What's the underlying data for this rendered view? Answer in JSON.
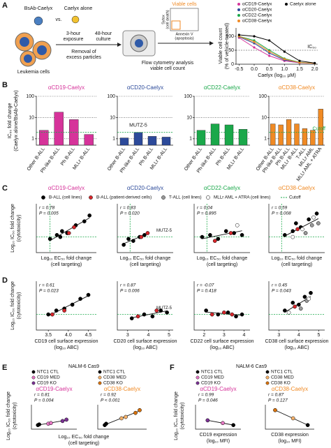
{
  "panel_labels": [
    "A",
    "B",
    "C",
    "D",
    "E",
    "F"
  ],
  "diagram": {
    "bsab": "BsAb-Caelyx",
    "vs": "vs.",
    "alone": "Caelyx alone",
    "cells": "Leukemia cells",
    "exposure": [
      "3-hour",
      "exposure"
    ],
    "culture": [
      "48-hour",
      "culture"
    ],
    "removal": [
      "Removal of",
      "excess particles"
    ],
    "flow": [
      "Flow cytometry analysis",
      "viable cell count"
    ],
    "viable": "Viable cells",
    "sytox": [
      "Sytox",
      "(cell death)"
    ],
    "annexin": [
      "Annexin V",
      "(apoptosis)"
    ]
  },
  "panel_b": {
    "y_label": [
      "IC₅₀ fold change",
      "(Caelyx alone/BsAb-Caelyx)"
    ]
  },
  "panel_c": {
    "y_label": [
      "Log₁₀ IC₅₀ fold change",
      "(cytotoxicity)"
    ],
    "legend": [
      {
        "name": "B-ALL (cell lines)",
        "color": "#000000"
      },
      {
        "name": "B-ALL (patient-derived cells)",
        "color": "#d7262b"
      },
      {
        "name": "T-ALL (cell lines)",
        "color": "#9a9a9a"
      },
      {
        "name": "MLLr AML + ATRA (cell lines)",
        "color": "#ffffff"
      },
      {
        "name": "Cutoff",
        "color": "#1aa84a",
        "style": "dashed"
      }
    ]
  },
  "panel_d": {
    "y_label": [
      "Log₁₀ IC₅₀ fold change",
      "(cytotoxicity)"
    ]
  },
  "panel_e": {
    "header": "NALM-6 Cas9",
    "y_label": [
      "Log₁₀ IC₅₀ fold change",
      "(cytotoxicity)"
    ],
    "x_label": [
      "Log₁₀ EC₅₀ fold change",
      "(cell targeting)"
    ]
  },
  "panel_f": {
    "header": "NALM-6 Cas9",
    "y_label": [
      "Log₁₀ IC₅₀ fold change",
      "(cytotoxicity)"
    ]
  },
  "chart_data": [
    {
      "type": "line",
      "x_label": "Caelyx (log₁₀ µM)",
      "y_label": [
        "Viable cell count",
        "(% of vehicle-treated)"
      ],
      "x": [
        -0.5,
        0,
        0.5,
        1,
        1.5,
        2
      ],
      "xlim": [
        -0.6,
        2.1
      ],
      "ylim": [
        0,
        130
      ],
      "xticks": [
        -0.5,
        {
          "value": 0,
          "label": "0.0"
        },
        0.5,
        {
          "value": 1,
          "label": "1.0"
        },
        1.5,
        {
          "value": 2,
          "label": "2.0"
        }
      ],
      "yticks": [
        0,
        50,
        100
      ],
      "annotation": "IC₅₀",
      "reference_line": 50,
      "series": [
        {
          "name": "αCD19-Caelyx",
          "color": "#d6339a",
          "values": [
            95,
            60,
            30,
            12,
            5,
            3
          ]
        },
        {
          "name": "αCD20-Caelyx",
          "color": "#2c4a9a",
          "values": [
            98,
            75,
            40,
            15,
            6,
            3
          ]
        },
        {
          "name": "αCD22-Caelyx",
          "color": "#1aa84a",
          "values": [
            100,
            85,
            50,
            20,
            7,
            3
          ]
        },
        {
          "name": "αCD38-Caelyx",
          "color": "#f08a24",
          "values": [
            100,
            80,
            45,
            18,
            6,
            3
          ]
        },
        {
          "name": "Caelyx alone",
          "color": "#000000",
          "values": [
            105,
            100,
            85,
            45,
            12,
            4
          ]
        }
      ]
    },
    {
      "type": "bar",
      "title": "αCD19-Caelyx",
      "color": "#d6339a",
      "categories": [
        "Other B-ALL",
        "Ph-like B-ALL",
        "Ph B-ALL",
        "MLLr B-ALL"
      ],
      "values": [
        2.5,
        18,
        8,
        1.6
      ],
      "ylim": [
        0.5,
        100
      ],
      "yticks": [
        1,
        10,
        100
      ],
      "log_scale": true,
      "grid": true,
      "cutoff": 2
    },
    {
      "type": "bar",
      "title": "αCD20-Caelyx",
      "color": "#2c4a9a",
      "categories": [
        "Other B-ALL",
        "Ph-like B-ALL",
        "Ph B-ALL",
        "MLLr B-ALL"
      ],
      "values": [
        1.1,
        2,
        1.3,
        1.2
      ],
      "ylim": [
        0.5,
        100
      ],
      "yticks": [
        1,
        10,
        100
      ],
      "log_scale": true,
      "grid": true,
      "cutoff": 2,
      "annotation": "MUTZ-5"
    },
    {
      "type": "bar",
      "title": "αCD22-Caelyx",
      "color": "#1aa84a",
      "categories": [
        "Other B-ALL",
        "Ph-like B-ALL",
        "Ph B-ALL",
        "MLLr B-ALL"
      ],
      "values": [
        2.5,
        5,
        4.5,
        2.8
      ],
      "ylim": [
        0.5,
        100
      ],
      "yticks": [
        1,
        10,
        100
      ],
      "log_scale": true,
      "grid": true,
      "cutoff": 2
    },
    {
      "type": "bar",
      "title": "αCD38-Caelyx",
      "color": "#f08a24",
      "categories": [
        "Other B-ALL",
        "Ph-like B-ALL",
        "Ph B-ALL",
        "MLLr B-ALL",
        "T-ALL",
        "MLLr AML",
        "MLLr AML + ATRA"
      ],
      "values": [
        5,
        4.5,
        8,
        5,
        3,
        2.5,
        25
      ],
      "ylim": [
        0.5,
        100
      ],
      "yticks": [
        1,
        10,
        100
      ],
      "log_scale": true,
      "grid": true,
      "cutoff": 2,
      "cutoff_label": "Cutoff"
    },
    {
      "type": "scatter",
      "title": "αCD19-Caelyx",
      "title_color": "#d6339a",
      "stats": [
        "r = 0.78",
        "P = 0.005"
      ],
      "x_label": [
        "Log₁₀ EC₅₀ fold change",
        "(cell targeting)"
      ],
      "xlim": [
        -0.5,
        3
      ],
      "ylim": [
        -0.5,
        2
      ],
      "cutoff_x": 0.3,
      "cutoff_y": 0.3,
      "series": [
        {
          "color": "#000000",
          "x": [
            0.3,
            0.7,
            1.0,
            1.3,
            1.8,
            2.3,
            2.6,
            0.9
          ],
          "values": [
            0.2,
            0.4,
            0.6,
            0.5,
            0.9,
            1.1,
            1.4,
            0.3
          ]
        },
        {
          "color": "#d7262b",
          "x": [
            1.4,
            1.7
          ],
          "values": [
            0.5,
            0.8
          ]
        }
      ]
    },
    {
      "type": "scatter",
      "title": "αCD20-Caelyx",
      "title_color": "#2c4a9a",
      "stats": [
        "r = 0.83",
        "P = 0.020"
      ],
      "x_label": [
        "Log₁₀ EC₅₀ fold change",
        "(cell targeting)"
      ],
      "xlim": [
        -0.5,
        3
      ],
      "ylim": [
        -0.5,
        2
      ],
      "cutoff_x": 0.3,
      "cutoff_y": 0.3,
      "annotation": "MUTZ-5",
      "series": [
        {
          "color": "#000000",
          "x": [
            -0.1,
            0.2,
            0.5,
            0.9,
            1.2
          ],
          "values": [
            -0.1,
            0.2,
            0.1,
            0.3,
            0.4
          ]
        },
        {
          "color": "#d7262b",
          "x": [
            1.0,
            1.4
          ],
          "values": [
            0.3,
            0.5
          ]
        }
      ]
    },
    {
      "type": "scatter",
      "title": "αCD22-Caelyx",
      "title_color": "#1aa84a",
      "stats": [
        "r = 0.04",
        "P = 0.895"
      ],
      "x_label": [
        "Log₁₀ EC₅₀ fold change",
        "(cell targeting)"
      ],
      "xlim": [
        -0.5,
        3
      ],
      "ylim": [
        -0.5,
        2
      ],
      "cutoff_x": 0.3,
      "cutoff_y": 0.3,
      "series": [
        {
          "color": "#000000",
          "x": [
            0,
            0.5,
            1,
            1.5,
            2,
            2.5
          ],
          "values": [
            0.3,
            0.4,
            0.2,
            0.6,
            0.5,
            0.4
          ]
        },
        {
          "color": "#d7262b",
          "x": [
            0.8,
            1.8
          ],
          "values": [
            0.1,
            0.5
          ]
        },
        {
          "color": "#ffffff",
          "x": [
            2.2
          ],
          "values": [
            0.9
          ]
        }
      ]
    },
    {
      "type": "scatter",
      "title": "αCD38-Caelyx",
      "title_color": "#f08a24",
      "stats": [
        "r = 0.59",
        "P = 0.008"
      ],
      "x_label": [
        "Log₁₀ EC₅₀ fold change",
        "(cell targeting)"
      ],
      "xlim": [
        -0.5,
        3
      ],
      "ylim": [
        -0.5,
        2
      ],
      "cutoff_x": 0.3,
      "cutoff_y": 0.3,
      "series": [
        {
          "color": "#000000",
          "x": [
            0.5,
            1,
            1.2,
            1.5,
            2,
            2.5
          ],
          "values": [
            0.4,
            0.6,
            1.0,
            0.8,
            1.2,
            1.5
          ]
        },
        {
          "color": "#9a9a9a",
          "x": [
            1.8,
            2.2,
            2.6
          ],
          "values": [
            0.5,
            0.9,
            1.0
          ]
        },
        {
          "color": "#ffffff",
          "x": [
            1.0,
            1.6,
            2.3
          ],
          "values": [
            0.3,
            0.7,
            1.3
          ]
        },
        {
          "color": "#d7262b",
          "x": [
            1.3
          ],
          "values": [
            0.7
          ]
        }
      ]
    },
    {
      "type": "scatter",
      "stats": [
        "r = 0.61",
        "P = 0.023"
      ],
      "x_label": [
        "CD19 cell surface expression",
        "(log₁₀ ABC)"
      ],
      "xlim": [
        3.2,
        4.7
      ],
      "xticks": [
        3.5,
        {
          "value": 4,
          "label": "4.0"
        },
        4.5
      ],
      "ylim": [
        -0.5,
        2
      ],
      "cutoff_y": 0.3,
      "series": [
        {
          "color": "#000000",
          "x": [
            3.5,
            3.7,
            3.9,
            4.1,
            4.3,
            4.5
          ],
          "values": [
            0.3,
            0.5,
            0.6,
            0.8,
            1.1,
            1.3
          ]
        },
        {
          "color": "#d7262b",
          "x": [
            3.6,
            3.9
          ],
          "values": [
            0.3,
            0.5
          ]
        }
      ]
    },
    {
      "type": "scatter",
      "stats": [
        "r = 0.87",
        "P = 0.006"
      ],
      "x_label": [
        "CD20 cell surface expression",
        "(log₁₀ ABC)"
      ],
      "annotation": "MUTZ-5",
      "xlim": [
        2.5,
        5.2
      ],
      "xticks": [
        3,
        4,
        5
      ],
      "ylim": [
        -0.5,
        2
      ],
      "cutoff_y": 0.3,
      "series": [
        {
          "color": "#000000",
          "x": [
            3.2,
            3.8,
            4.2,
            4.6,
            4.9
          ],
          "values": [
            0.1,
            0.3,
            0.2,
            0.5,
            0.4
          ]
        },
        {
          "color": "#d7262b",
          "x": [
            3.5,
            4.4
          ],
          "values": [
            0.2,
            0.5
          ]
        }
      ]
    },
    {
      "type": "scatter",
      "stats": [
        "r = -0.07",
        "P = 0.418"
      ],
      "x_label": [
        "CD22 cell surface expression",
        "(log₁₀ ABC)"
      ],
      "xlim": [
        1.5,
        4.3
      ],
      "xticks": [
        2,
        3,
        4
      ],
      "ylim": [
        -0.5,
        2
      ],
      "cutoff_y": 0.3,
      "series": [
        {
          "color": "#000000",
          "x": [
            2.1,
            2.7,
            3.2,
            3.6,
            3.9
          ],
          "values": [
            0.5,
            0.3,
            0.4,
            0.2,
            0.3
          ]
        },
        {
          "color": "#d7262b",
          "x": [
            2.4,
            3.0,
            3.4
          ],
          "values": [
            0.3,
            0.4,
            0.3
          ]
        }
      ]
    },
    {
      "type": "scatter",
      "stats": [
        "r = 0.45",
        "P = 0.043"
      ],
      "x_label": [
        "CD38 cell surface expression",
        "(log₁₀ ABC)"
      ],
      "xlim": [
        2.5,
        5.3
      ],
      "xticks": [
        3,
        4,
        5
      ],
      "ylim": [
        -0.5,
        2
      ],
      "cutoff_y": 0.3,
      "series": [
        {
          "color": "#000000",
          "x": [
            3.3,
            3.7,
            4.0,
            4.3,
            4.6
          ],
          "values": [
            0.5,
            0.9,
            0.8,
            1.2,
            1.4
          ]
        },
        {
          "color": "#9a9a9a",
          "x": [
            4.1,
            4.4
          ],
          "values": [
            0.6,
            1.0
          ]
        },
        {
          "color": "#ffffff",
          "x": [
            3.5,
            4.5
          ],
          "values": [
            0.4,
            1.1
          ]
        },
        {
          "color": "#d7262b",
          "x": [
            3.8
          ],
          "values": [
            0.7
          ]
        }
      ]
    },
    {
      "type": "scatter",
      "title": "αCD19-Caelyx",
      "title_color": "#d6339a",
      "stats": [
        "r = 0.81",
        "P = 0.004"
      ],
      "xlim": [
        -0.5,
        3
      ],
      "ylim": [
        -0.3,
        1.5
      ],
      "series": [
        {
          "name": "NTC1 CTL",
          "color": "#000000",
          "x": [
            0,
            0.1
          ],
          "values": [
            0,
            0.05
          ]
        },
        {
          "name": "CD19 MED",
          "color": "#e377c2",
          "x": [
            0.8,
            1.0
          ],
          "values": [
            0.1,
            0.15
          ]
        },
        {
          "name": "CD19 KO",
          "color": "#7b3294",
          "x": [
            1.9,
            2.2
          ],
          "values": [
            0.3,
            0.4
          ]
        }
      ]
    },
    {
      "type": "scatter",
      "title": "αCD38-Caelyx",
      "title_color": "#f08a24",
      "stats": [
        "r = 0.92",
        "P < 0.001"
      ],
      "xlim": [
        -0.5,
        3
      ],
      "ylim": [
        -0.3,
        1.5
      ],
      "series": [
        {
          "name": "NTC1 CTL",
          "color": "#000000",
          "x": [
            0,
            0.1
          ],
          "values": [
            0,
            0.1
          ]
        },
        {
          "name": "CD38 MED",
          "color": "#f6b26b",
          "x": [
            1.2,
            1.5
          ],
          "values": [
            0.5,
            0.6
          ]
        },
        {
          "name": "CD38 KO",
          "color": "#d9730d",
          "x": [
            2.2,
            2.5
          ],
          "values": [
            0.9,
            1.1
          ]
        }
      ]
    },
    {
      "type": "scatter",
      "title": "αCD19-Caelyx",
      "title_color": "#d6339a",
      "stats": [
        "r = 0.99",
        "P = 0.046"
      ],
      "x_label": [
        "CD19 expression",
        "(log₁₀ MFI)"
      ],
      "xlim": [
        2,
        5
      ],
      "ylim": [
        -0.3,
        1.5
      ],
      "series": [
        {
          "name": "NTC1 CTL",
          "color": "#000000",
          "x": [
            4.5
          ],
          "values": [
            0
          ]
        },
        {
          "name": "CD19 MED",
          "color": "#e377c2",
          "x": [
            3.8
          ],
          "values": [
            0.15
          ]
        },
        {
          "name": "CD19 KO",
          "color": "#7b3294",
          "x": [
            2.8
          ],
          "values": [
            0.35
          ]
        }
      ]
    },
    {
      "type": "scatter",
      "title": "αCD38-Caelyx",
      "title_color": "#f08a24",
      "stats": [
        "r = 0.87",
        "P = 0.127"
      ],
      "x_label": [
        "CD38 expression",
        "(log₁₀ MFI)"
      ],
      "xlim": [
        2,
        5
      ],
      "ylim": [
        -0.3,
        1.5
      ],
      "series": [
        {
          "name": "NTC1 CTL",
          "color": "#000000",
          "x": [
            4.6
          ],
          "values": [
            0
          ]
        },
        {
          "name": "CD38 MED",
          "color": "#f6b26b",
          "x": [
            3.7
          ],
          "values": [
            0.5
          ]
        },
        {
          "name": "CD38 KO",
          "color": "#d9730d",
          "x": [
            2.6
          ],
          "values": [
            1.1
          ]
        }
      ]
    }
  ]
}
